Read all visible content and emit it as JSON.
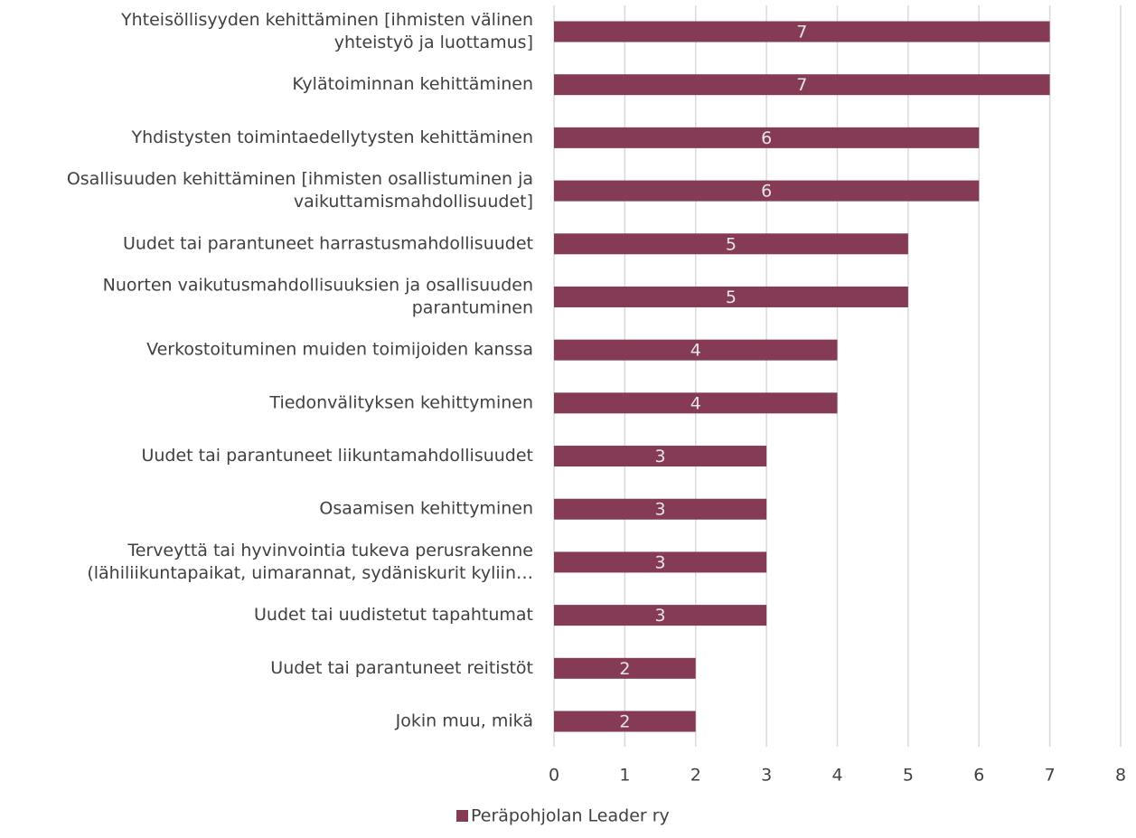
{
  "chart_data": {
    "type": "bar",
    "orientation": "horizontal",
    "categories": [
      [
        "Yhteisöllisyyden kehittäminen [ihmisten välinen",
        "yhteistyö ja luottamus]"
      ],
      [
        "Kylätoiminnan kehittäminen"
      ],
      [
        "Yhdistysten toimintaedellytysten kehittäminen"
      ],
      [
        "Osallisuuden kehittäminen [ihmisten osallistuminen ja",
        "vaikuttamismahdollisuudet]"
      ],
      [
        "Uudet tai parantuneet harrastusmahdollisuudet"
      ],
      [
        "Nuorten vaikutusmahdollisuuksien ja osallisuuden",
        "parantuminen"
      ],
      [
        "Verkostoituminen muiden toimijoiden kanssa"
      ],
      [
        "Tiedonvälityksen kehittyminen"
      ],
      [
        "Uudet tai parantuneet liikuntamahdollisuudet"
      ],
      [
        "Osaamisen kehittyminen"
      ],
      [
        "Terveyttä tai hyvinvointia tukeva perusrakenne",
        "(lähiliikuntapaikat, uimarannat, sydäniskurit kyliin…"
      ],
      [
        "Uudet tai uudistetut tapahtumat"
      ],
      [
        "Uudet tai parantuneet reitistöt"
      ],
      [
        "Jokin muu, mikä"
      ]
    ],
    "series": [
      {
        "name": "Peräpohjolan Leader ry",
        "color": "#853a56",
        "values": [
          7,
          7,
          6,
          6,
          5,
          5,
          4,
          4,
          3,
          3,
          3,
          3,
          2,
          2
        ]
      }
    ],
    "xlim": [
      0,
      8
    ],
    "xticks": [
      0,
      1,
      2,
      3,
      4,
      5,
      6,
      7,
      8
    ],
    "grid": true,
    "legend": "bottom"
  }
}
